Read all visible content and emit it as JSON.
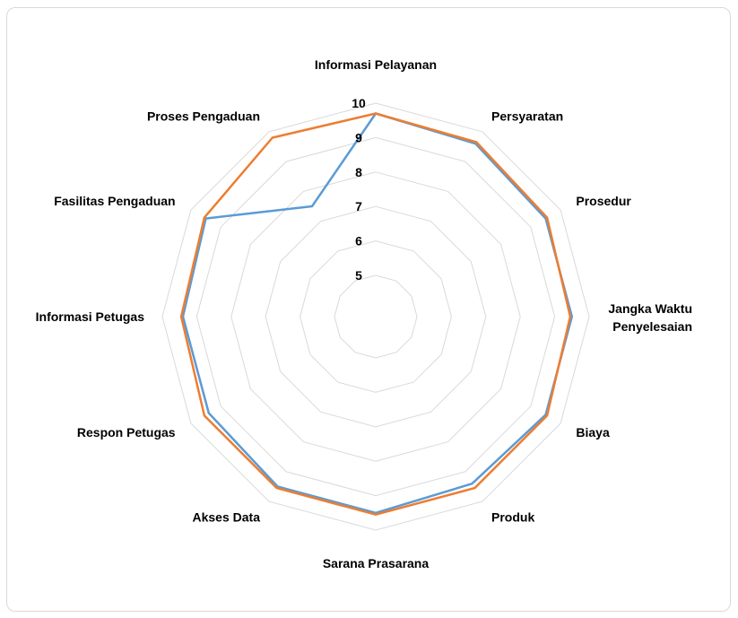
{
  "chart_data": {
    "type": "radar",
    "title": "",
    "categories": [
      "Informasi Pelayanan",
      "Persyaratan",
      "Prosedur",
      "Jangka Waktu Penyelesaian",
      "Biaya",
      "Produk",
      "Sarana Prasarana",
      "Akses Data",
      "Respon Petugas",
      "Informasi Petugas",
      "Fasilitas Pengaduan",
      "Proses Pengaduan"
    ],
    "series": [
      {
        "color": "#5b9bd5",
        "values": [
          9.7,
          9.6,
          9.5,
          9.5,
          9.5,
          9.4,
          9.5,
          9.5,
          9.4,
          9.4,
          9.5,
          7.5
        ]
      },
      {
        "color": "#ed7d31",
        "values": [
          9.7,
          9.65,
          9.55,
          9.45,
          9.55,
          9.55,
          9.55,
          9.55,
          9.55,
          9.45,
          9.55,
          9.8
        ]
      }
    ],
    "rlim": [
      5,
      10
    ],
    "ticks": [
      "5",
      "6",
      "7",
      "8",
      "9",
      "10"
    ],
    "grid": true,
    "legend": "none"
  }
}
